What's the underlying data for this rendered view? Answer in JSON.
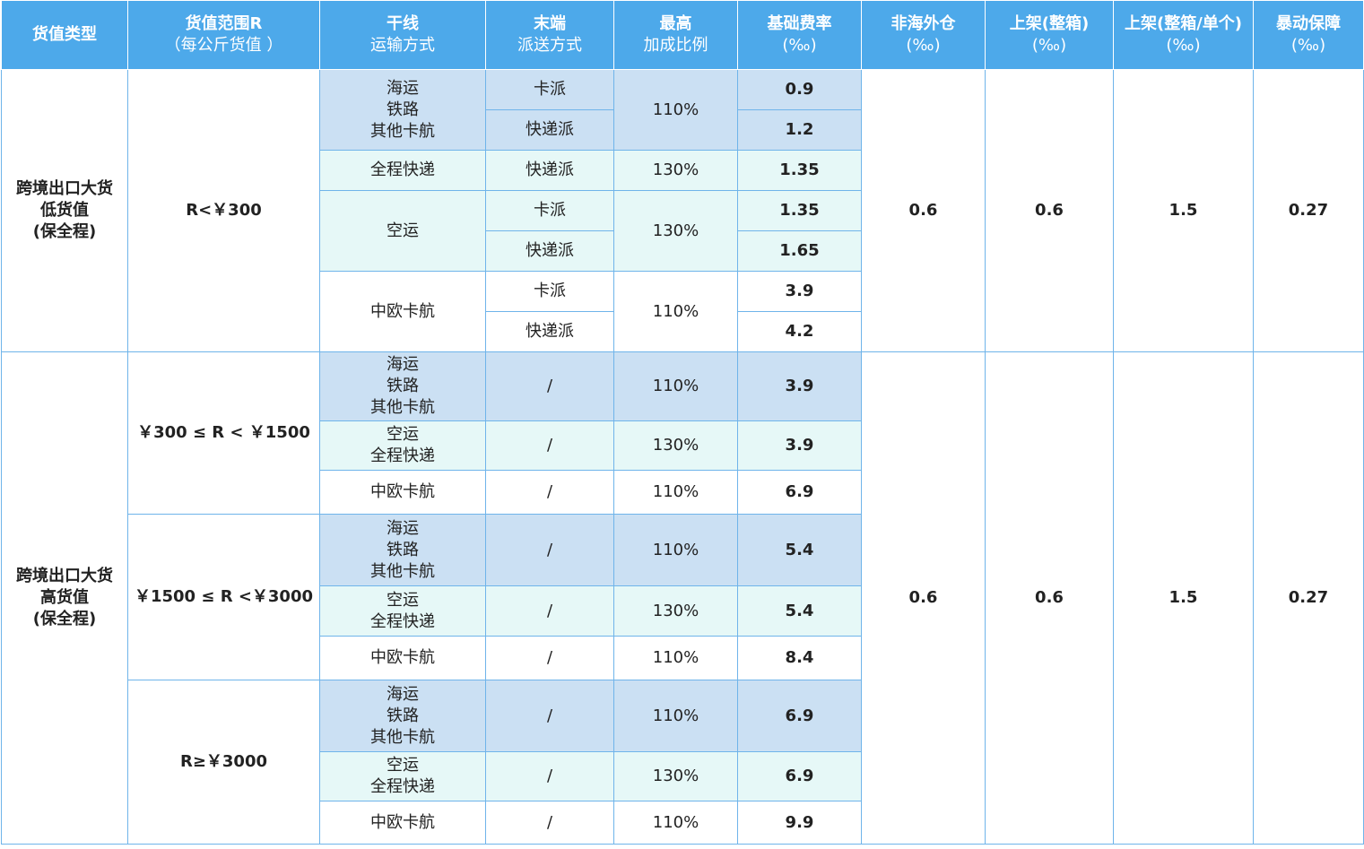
{
  "headers": [
    {
      "main": "货值类型",
      "sub": ""
    },
    {
      "main": "货值范围R",
      "sub": "（每公斤货值 ）"
    },
    {
      "main": "干线",
      "sub": "运输方式",
      "sub_bold": true
    },
    {
      "main": "末端",
      "sub": "派送方式",
      "sub_bold": true
    },
    {
      "main": "最高",
      "sub": "加成比例",
      "sub_bold": true
    },
    {
      "main": "基础费率",
      "sub": "(‰)"
    },
    {
      "main": "非海外仓",
      "sub": "(‰)"
    },
    {
      "main": "上架(整箱)",
      "sub": "(‰)"
    },
    {
      "main": "上架(整箱/单个)",
      "sub": "(‰)"
    },
    {
      "main": "暴动保障",
      "sub": "(‰)"
    }
  ],
  "low": {
    "type": "跨境出口大货\n低货值\n(保全程)",
    "range": "R<￥300",
    "groups": [
      {
        "trunk": "海运\n铁路\n其他卡航",
        "markup": "110%",
        "rows": [
          {
            "last": "卡派",
            "rate": "0.9"
          },
          {
            "last": "快递派",
            "rate": "1.2"
          }
        ]
      },
      {
        "trunk": "全程快递",
        "markup": "130%",
        "rows": [
          {
            "last": "快递派",
            "rate": "1.35"
          }
        ]
      },
      {
        "trunk": "空运",
        "markup": "130%",
        "rows": [
          {
            "last": "卡派",
            "rate": "1.35"
          },
          {
            "last": "快递派",
            "rate": "1.65"
          }
        ]
      },
      {
        "trunk": "中欧卡航",
        "markup": "110%",
        "rows": [
          {
            "last": "卡派",
            "rate": "3.9"
          },
          {
            "last": "快递派",
            "rate": "4.2"
          }
        ]
      }
    ],
    "non_overseas": "0.6",
    "shelf_box": "0.6",
    "shelf_unit": "1.5",
    "riot": "0.27"
  },
  "high": {
    "type": "跨境出口大货\n高货值\n(保全程)",
    "ranges": [
      {
        "range": "￥300 ≤ R < ￥1500",
        "rows": [
          {
            "trunk": "海运\n铁路\n其他卡航",
            "last": "/",
            "markup": "110%",
            "rate": "3.9"
          },
          {
            "trunk": "空运\n全程快递",
            "last": "/",
            "markup": "130%",
            "rate": "3.9"
          },
          {
            "trunk": "中欧卡航",
            "last": "/",
            "markup": "110%",
            "rate": "6.9"
          }
        ]
      },
      {
        "range": "￥1500 ≤ R <￥3000",
        "rows": [
          {
            "trunk": "海运\n铁路\n其他卡航",
            "last": "/",
            "markup": "110%",
            "rate": "5.4"
          },
          {
            "trunk": "空运\n全程快递",
            "last": "/",
            "markup": "130%",
            "rate": "5.4"
          },
          {
            "trunk": "中欧卡航",
            "last": "/",
            "markup": "110%",
            "rate": "8.4"
          }
        ]
      },
      {
        "range": "R≥￥3000",
        "rows": [
          {
            "trunk": "海运\n铁路\n其他卡航",
            "last": "/",
            "markup": "110%",
            "rate": "6.9"
          },
          {
            "trunk": "空运\n全程快递",
            "last": "/",
            "markup": "130%",
            "rate": "6.9"
          },
          {
            "trunk": "中欧卡航",
            "last": "/",
            "markup": "110%",
            "rate": "9.9"
          }
        ]
      }
    ],
    "non_overseas": "0.6",
    "shelf_box": "0.6",
    "shelf_unit": "1.5",
    "riot": "0.27"
  }
}
